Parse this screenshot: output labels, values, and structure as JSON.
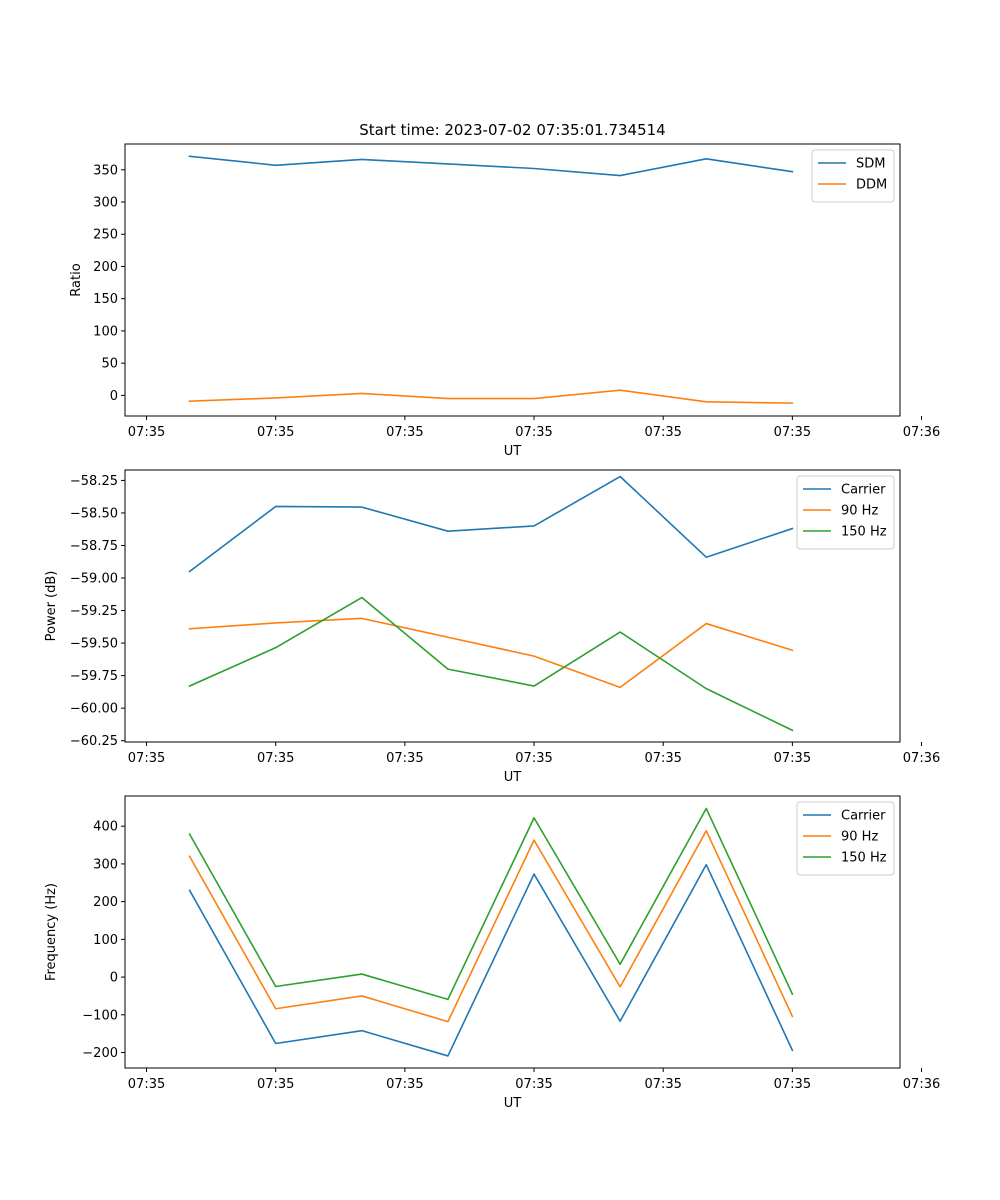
{
  "chart_data": [
    {
      "type": "line",
      "title": "Start time: 2023-07-02 07:35:01.734514",
      "xlabel": "UT",
      "ylabel": "Ratio",
      "x": [
        1,
        2,
        3,
        4,
        5,
        6,
        7,
        8
      ],
      "xlim": [
        0.25,
        9.25
      ],
      "xticks": [
        0.5,
        2,
        3.5,
        5,
        6.5,
        8,
        9.5
      ],
      "xtick_labels": [
        "07:35",
        "07:35",
        "07:35",
        "07:35",
        "07:35",
        "07:35",
        "07:36"
      ],
      "ylim": [
        -32,
        390
      ],
      "yticks": [
        0,
        50,
        100,
        150,
        200,
        250,
        300,
        350
      ],
      "ytick_labels": [
        "0",
        "50",
        "100",
        "150",
        "200",
        "250",
        "300",
        "350"
      ],
      "legend": "upper right",
      "series": [
        {
          "name": "SDM",
          "color": "#1f77b4",
          "values": [
            371,
            357,
            366,
            359,
            352,
            341,
            367,
            347
          ]
        },
        {
          "name": "DDM",
          "color": "#ff7f0e",
          "values": [
            -9,
            -4,
            3,
            -5,
            -5,
            8,
            -10,
            -12
          ]
        }
      ]
    },
    {
      "type": "line",
      "title": "",
      "xlabel": "UT",
      "ylabel": "Power (dB)",
      "x": [
        1,
        2,
        3,
        4,
        5,
        6,
        7,
        8
      ],
      "xlim": [
        0.25,
        9.25
      ],
      "xticks": [
        0.5,
        2,
        3.5,
        5,
        6.5,
        8,
        9.5
      ],
      "xtick_labels": [
        "07:35",
        "07:35",
        "07:35",
        "07:35",
        "07:35",
        "07:35",
        "07:36"
      ],
      "ylim": [
        -60.26,
        -58.17
      ],
      "yticks": [
        -60.25,
        -60.0,
        -59.75,
        -59.5,
        -59.25,
        -59.0,
        -58.75,
        -58.5,
        -58.25
      ],
      "ytick_labels": [
        "−60.25",
        "−60.00",
        "−59.75",
        "−59.50",
        "−59.25",
        "−59.00",
        "−58.75",
        "−58.50",
        "−58.25"
      ],
      "legend": "upper right",
      "series": [
        {
          "name": "Carrier",
          "color": "#1f77b4",
          "values": [
            -58.95,
            -58.45,
            -58.455,
            -58.64,
            -58.6,
            -58.22,
            -58.84,
            -58.62
          ]
        },
        {
          "name": "90 Hz",
          "color": "#ff7f0e",
          "values": [
            -59.39,
            -59.345,
            -59.31,
            -59.455,
            -59.6,
            -59.84,
            -59.35,
            -59.555
          ]
        },
        {
          "name": "150 Hz",
          "color": "#2ca02c",
          "values": [
            -59.83,
            -59.535,
            -59.15,
            -59.7,
            -59.83,
            -59.415,
            -59.85,
            -60.17
          ]
        }
      ]
    },
    {
      "type": "line",
      "title": "",
      "xlabel": "UT",
      "ylabel": "Frequency (Hz)",
      "x": [
        1,
        2,
        3,
        4,
        5,
        6,
        7,
        8
      ],
      "xlim": [
        0.25,
        9.25
      ],
      "xticks": [
        0.5,
        2,
        3.5,
        5,
        6.5,
        8,
        9.5
      ],
      "xtick_labels": [
        "07:35",
        "07:35",
        "07:35",
        "07:35",
        "07:35",
        "07:35",
        "07:36"
      ],
      "ylim": [
        -241,
        480
      ],
      "yticks": [
        -200,
        -100,
        0,
        100,
        200,
        300,
        400
      ],
      "ytick_labels": [
        "−200",
        "−100",
        "0",
        "100",
        "200",
        "300",
        "400"
      ],
      "legend": "upper right",
      "series": [
        {
          "name": "Carrier",
          "color": "#1f77b4",
          "values": [
            230,
            -176,
            -142,
            -209,
            273,
            -117,
            298,
            -194
          ]
        },
        {
          "name": "90 Hz",
          "color": "#ff7f0e",
          "values": [
            320,
            -84,
            -50,
            -118,
            363,
            -26,
            388,
            -104
          ]
        },
        {
          "name": "150 Hz",
          "color": "#2ca02c",
          "values": [
            379,
            -25,
            8,
            -59,
            422,
            34,
            447,
            -45
          ]
        }
      ]
    }
  ]
}
